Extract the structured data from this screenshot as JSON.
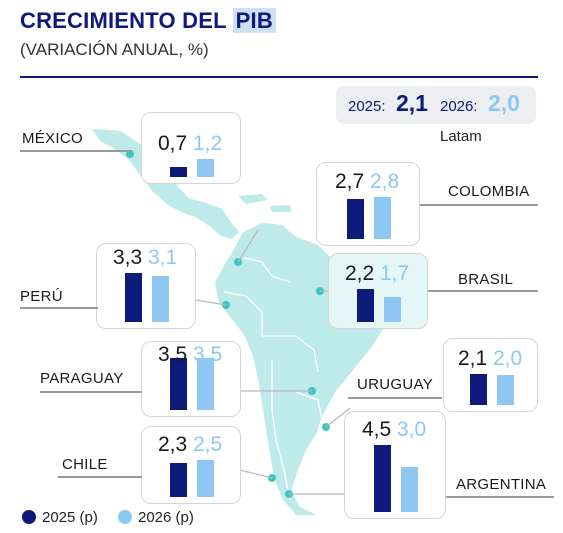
{
  "header": {
    "title_main": "CRECIMIENTO DEL ",
    "title_highlight": "PIB",
    "subtitle": "(VARIACIÓN ANUAL, %)"
  },
  "latam": {
    "year_2025_label": "2025:",
    "value_2025": "2,1",
    "year_2026_label": "2026:",
    "value_2026": "2,0",
    "caption": "Latam"
  },
  "legend": {
    "series_2025": "2025 (p)",
    "series_2026": "2026 (p)"
  },
  "colors": {
    "series_2025": "#0d1a7a",
    "series_2026": "#8ec8f2",
    "map_fill": "#bfeaea",
    "marker": "#3cc6c6"
  },
  "chart_data": {
    "type": "bar",
    "title": "CRECIMIENTO DEL PIB",
    "subtitle": "(VARIACIÓN ANUAL, %)",
    "series": [
      {
        "name": "2025 (p)",
        "values": [
          0.7,
          2.7,
          3.3,
          2.2,
          3.5,
          2.1,
          2.3,
          4.5
        ]
      },
      {
        "name": "2026 (p)",
        "values": [
          1.2,
          2.8,
          3.1,
          1.7,
          3.5,
          2.0,
          2.5,
          3.0
        ]
      }
    ],
    "categories": [
      "MÉXICO",
      "COLOMBIA",
      "PERÚ",
      "BRASIL",
      "PARAGUAY",
      "URUGUAY",
      "CHILE",
      "ARGENTINA"
    ],
    "countries": [
      {
        "name": "MÉXICO",
        "v2025": "0,7",
        "v2026": "1,2"
      },
      {
        "name": "COLOMBIA",
        "v2025": "2,7",
        "v2026": "2,8"
      },
      {
        "name": "PERÚ",
        "v2025": "3,3",
        "v2026": "3,1"
      },
      {
        "name": "BRASIL",
        "v2025": "2,2",
        "v2026": "1,7"
      },
      {
        "name": "PARAGUAY",
        "v2025": "3,5",
        "v2026": "3,5"
      },
      {
        "name": "URUGUAY",
        "v2025": "2,1",
        "v2026": "2,0"
      },
      {
        "name": "CHILE",
        "v2025": "2,3",
        "v2026": "2,5"
      },
      {
        "name": "ARGENTINA",
        "v2025": "4,5",
        "v2026": "3,0"
      }
    ],
    "latam": {
      "2025": 2.1,
      "2026": 2.0
    },
    "legend_position": "bottom-left"
  }
}
